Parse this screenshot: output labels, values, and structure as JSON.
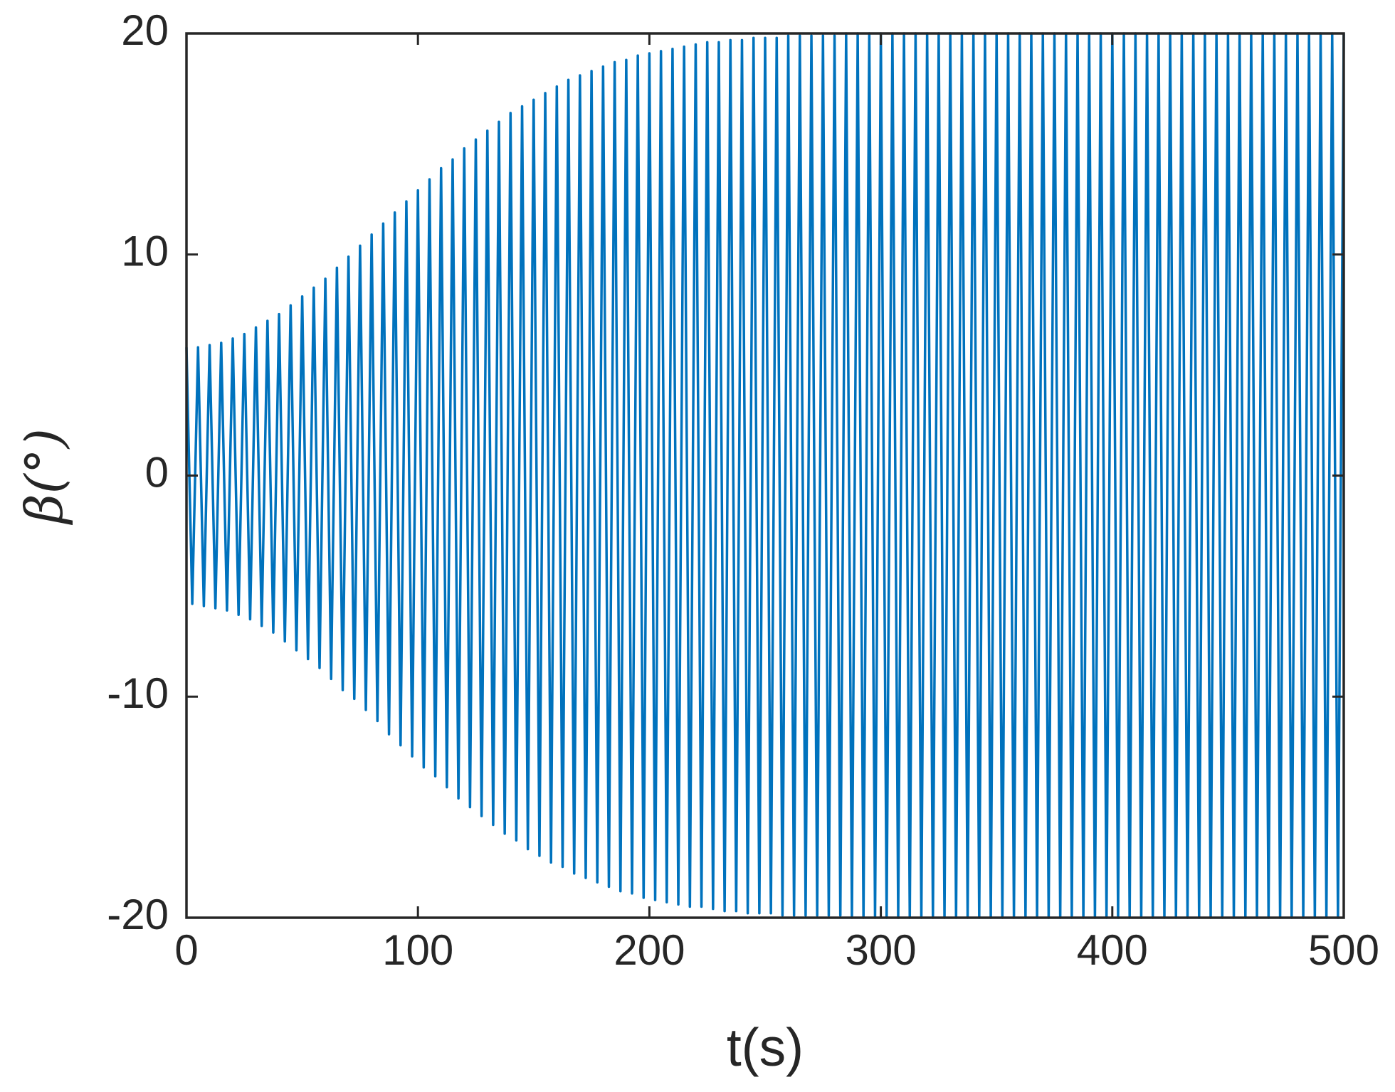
{
  "chart_data": {
    "type": "line",
    "x_label": "t(s)",
    "y_label": "β(°)",
    "color": "#0072bd",
    "xlim": [
      0,
      500
    ],
    "ylim": [
      -20,
      20
    ],
    "xticks": [
      0,
      100,
      200,
      300,
      400,
      500
    ],
    "yticks": [
      -20,
      -10,
      0,
      10,
      20
    ],
    "x": [
      0,
      2.5,
      5,
      7.5,
      10,
      12.5,
      15,
      17.5,
      20,
      22.5,
      25,
      27.5,
      30,
      32.5,
      35,
      37.5,
      40,
      42.5,
      45,
      47.5,
      50,
      52.5,
      55,
      57.5,
      60,
      62.5,
      65,
      67.5,
      70,
      72.5,
      75,
      77.5,
      80,
      82.5,
      85,
      87.5,
      90,
      92.5,
      95,
      97.5,
      100,
      102.5,
      105,
      107.5,
      110,
      112.5,
      115,
      117.5,
      120,
      122.5,
      125,
      127.5,
      130,
      132.5,
      135,
      137.5,
      140,
      142.5,
      145,
      147.5,
      150,
      152.5,
      155,
      157.5,
      160,
      162.5,
      165,
      167.5,
      170,
      172.5,
      175,
      177.5,
      180,
      182.5,
      185,
      187.5,
      190,
      192.5,
      195,
      197.5,
      200,
      202.5,
      205,
      207.5,
      210,
      212.5,
      215,
      217.5,
      220,
      222.5,
      225,
      227.5,
      230,
      232.5,
      235,
      237.5,
      240,
      242.5,
      245,
      247.5,
      250,
      252.5,
      255,
      257.5,
      260,
      262.5,
      265,
      267.5,
      270,
      272.5,
      275,
      277.5,
      280,
      282.5,
      285,
      287.5,
      290,
      292.5,
      295,
      297.5,
      300,
      302.5,
      305,
      307.5,
      310,
      312.5,
      315,
      317.5,
      320,
      322.5,
      325,
      327.5,
      330,
      332.5,
      335,
      337.5,
      340,
      342.5,
      345,
      347.5,
      350,
      352.5,
      355,
      357.5,
      360,
      362.5,
      365,
      367.5,
      370,
      372.5,
      375,
      377.5,
      380,
      382.5,
      385,
      387.5,
      390,
      392.5,
      395,
      397.5,
      400,
      402.5,
      405,
      407.5,
      410,
      412.5,
      415,
      417.5,
      420,
      422.5,
      425,
      427.5,
      430,
      432.5,
      435,
      437.5,
      440,
      442.5,
      445,
      447.5,
      450,
      452.5,
      455,
      457.5,
      460,
      462.5,
      465,
      467.5,
      470,
      472.5,
      475,
      477.5,
      480,
      482.5,
      485,
      487.5,
      490,
      492.5,
      495,
      497.5,
      500
    ],
    "values": [
      5.8,
      -5.8,
      5.8,
      -5.9,
      5.9,
      -6.0,
      6.0,
      -6.1,
      6.2,
      -6.3,
      6.4,
      -6.5,
      6.7,
      -6.8,
      7.0,
      -7.1,
      7.3,
      -7.5,
      7.7,
      -7.9,
      8.1,
      -8.3,
      8.5,
      -8.7,
      8.9,
      -9.2,
      9.4,
      -9.7,
      9.9,
      -10.1,
      10.4,
      -10.6,
      10.9,
      -11.1,
      11.4,
      -11.7,
      11.9,
      -12.2,
      12.4,
      -12.7,
      12.9,
      -13.2,
      13.4,
      -13.6,
      13.9,
      -14.1,
      14.3,
      -14.6,
      14.8,
      -15.0,
      15.2,
      -15.4,
      15.6,
      -15.8,
      16.0,
      -16.2,
      16.4,
      -16.5,
      16.7,
      -16.9,
      17.0,
      -17.2,
      17.3,
      -17.5,
      17.6,
      -17.7,
      17.9,
      -18.0,
      18.1,
      -18.2,
      18.3,
      -18.4,
      18.5,
      -18.6,
      18.7,
      -18.8,
      18.8,
      -18.9,
      19.0,
      -19.1,
      19.1,
      -19.2,
      19.2,
      -19.3,
      19.3,
      -19.4,
      19.4,
      -19.5,
      19.5,
      -19.5,
      19.6,
      -19.6,
      19.6,
      -19.7,
      19.7,
      -19.7,
      19.7,
      -19.8,
      19.8,
      -19.8,
      19.8,
      -19.8,
      19.8,
      -19.9,
      19.9,
      -19.9,
      19.9,
      -19.9,
      19.9,
      -19.9,
      19.9,
      -19.9,
      19.9,
      -19.9,
      20,
      -20,
      20,
      -20,
      20,
      -20,
      20,
      -20,
      20,
      -20,
      20,
      -20,
      20,
      -20,
      20,
      -20,
      20,
      -20,
      20,
      -20,
      20,
      -20,
      20,
      -20,
      20,
      -20,
      20,
      -20,
      20,
      -20,
      20,
      -20,
      20,
      -20,
      20,
      -20,
      20,
      -20,
      20,
      -20,
      20,
      -20,
      20,
      -20,
      20,
      -20,
      20,
      -20,
      20,
      -20,
      20,
      -20,
      20,
      -20,
      20,
      -20,
      20,
      -20,
      20,
      -20,
      20,
      -20,
      20,
      -20,
      20,
      -20,
      20,
      -20,
      20,
      -20,
      20,
      -20,
      20,
      -20,
      20,
      -20,
      20,
      -20,
      20,
      -20,
      20,
      -20,
      20,
      -20,
      20,
      -20,
      20
    ]
  }
}
